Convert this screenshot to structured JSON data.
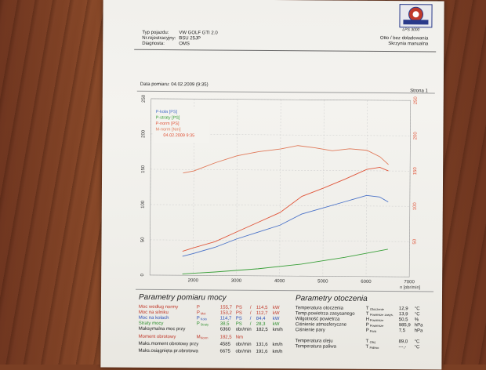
{
  "header": {
    "labels": [
      "Typ pojazdu:",
      "Nr.rejestracyjny:",
      "Diagnosta:"
    ],
    "values": [
      "VW GOLF GTI 2.0",
      "BSU 25JP",
      "OMS"
    ],
    "right_line1": "Otto / bez doładowania",
    "right_line2": "Skrzynia manualna",
    "logo_model": "LPS 3000"
  },
  "measure": {
    "date_label": "Data pomiaru: 04.02.2009 (9:35)",
    "page_label": "Strona 1"
  },
  "chart_data": {
    "type": "line",
    "x_axis_label": "n [obr/min]",
    "x_ticks": [
      2000,
      3000,
      4000,
      5000,
      6000,
      7000
    ],
    "xlim": [
      1000,
      7000
    ],
    "y_ticks": [
      0,
      50,
      100,
      150,
      200,
      250
    ],
    "ylim": [
      0,
      250
    ],
    "y_right_ticks": [
      50,
      100,
      150,
      200,
      250
    ],
    "legend_placement": "top-left",
    "legend": [
      "P-koła [PS]",
      "P-straty [PS]",
      "P-norm [PS]",
      "M-norm [Nm]"
    ],
    "legend_note": "04.02.2009 9:35",
    "grid": true,
    "series": [
      {
        "name": "P-koła [PS]",
        "color": "#4a72c8",
        "x": [
          1750,
          2000,
          2500,
          3000,
          3500,
          4000,
          4500,
          5000,
          5500,
          6000,
          6300,
          6500
        ],
        "y": [
          27,
          31,
          40,
          52,
          62,
          72,
          88,
          97,
          106,
          115,
          113,
          106
        ]
      },
      {
        "name": "P-straty [PS]",
        "color": "#3aa03a",
        "x": [
          1750,
          2500,
          3500,
          4500,
          5500,
          6500
        ],
        "y": [
          2,
          5,
          10,
          17,
          27,
          39
        ]
      },
      {
        "name": "P-norm [PS]",
        "color": "#e0553a",
        "x": [
          1750,
          2000,
          2500,
          3000,
          3500,
          4000,
          4500,
          5000,
          5500,
          6000,
          6300,
          6500
        ],
        "y": [
          34,
          39,
          48,
          62,
          76,
          90,
          113,
          125,
          138,
          152,
          155,
          150
        ]
      },
      {
        "name": "M-norm [Nm]",
        "color": "#e07a5a",
        "x": [
          1750,
          2000,
          2500,
          3000,
          3500,
          4000,
          4400,
          4800,
          5200,
          5600,
          6000,
          6300,
          6500
        ],
        "y": [
          145,
          148,
          160,
          170,
          176,
          180,
          185,
          182,
          178,
          181,
          179,
          170,
          159
        ]
      }
    ]
  },
  "params_power": {
    "title": "Parametry pomiaru mocy",
    "rows": [
      {
        "label": "Moc według normy",
        "sym": "P",
        "sub": "",
        "v1": "155,7",
        "u1": "PS",
        "sep": "/",
        "v2": "114,5",
        "u2": "kW",
        "color": "#c0392b"
      },
      {
        "label": "Moc na silniku",
        "sym": "P",
        "sub": "Mot",
        "v1": "153,2",
        "u1": "PS",
        "sep": "/",
        "v2": "112,7",
        "u2": "kW",
        "color": "#c0392b"
      },
      {
        "label": "Moc na kołach",
        "sym": "P",
        "sub": "Koło",
        "v1": "114,7",
        "u1": "PS",
        "sep": "/",
        "v2": "84,4",
        "u2": "kW",
        "color": "#2c4fb8"
      },
      {
        "label": "Straty mocy",
        "sym": "P",
        "sub": "Straty",
        "v1": "38,5",
        "u1": "PS",
        "sep": "/",
        "v2": "28,3",
        "u2": "kW",
        "color": "#2f8f2f"
      },
      {
        "label": "Maksymalna moc przy",
        "sym": "",
        "sub": "",
        "v1": "6360",
        "u1": "obr/min",
        "sep": "",
        "v2": "182,5",
        "u2": "km/h",
        "color": "#222222"
      }
    ],
    "rows2": [
      {
        "label": "Moment obrotowy",
        "sym": "M",
        "sub": "Norm",
        "v1": "182,5",
        "u1": "Nm",
        "v2": "",
        "u2": "",
        "color": "#c0392b"
      },
      {
        "label": "Maks.moment obrotowy przy",
        "sym": "",
        "sub": "",
        "v1": "4585",
        "u1": "obr/min",
        "v2": "131,6",
        "u2": "km/h",
        "color": "#222222"
      },
      {
        "label": "Maks.osiągnięta pr.obrotowa",
        "sym": "",
        "sub": "",
        "v1": "6675",
        "u1": "obr/min",
        "v2": "191,6",
        "u2": "km/h",
        "color": "#222222"
      }
    ]
  },
  "params_env": {
    "title": "Parametry otoczenia",
    "rows": [
      {
        "label": "Temperatura otoczenia",
        "sym": "T",
        "sub": "Otoczenie",
        "val": "12,9",
        "unit": "°C"
      },
      {
        "label": "Temp.powietrza zasysanego",
        "sym": "T",
        "sub": "Powietrze zasys.",
        "val": "13,9",
        "unit": "°C"
      },
      {
        "label": "Wilgotność powietrza",
        "sym": "H",
        "sub": "Powietrze",
        "val": "50,5",
        "unit": "%"
      },
      {
        "label": "Ciśnienie atmosferyczne",
        "sym": "P",
        "sub": "Powietrze",
        "val": "985,9",
        "unit": "hPa"
      },
      {
        "label": "Ciśnienie pary",
        "sym": "P",
        "sub": "Para",
        "val": "7,5",
        "unit": "hPa"
      }
    ],
    "rows2": [
      {
        "label": "Temperatura oleju",
        "sym": "T",
        "sub": "Olej",
        "val": "89,0",
        "unit": "°C"
      },
      {
        "label": "Temperatura paliwa",
        "sym": "T",
        "sub": "Paliwo",
        "val": "---,-",
        "unit": "°C"
      }
    ]
  }
}
